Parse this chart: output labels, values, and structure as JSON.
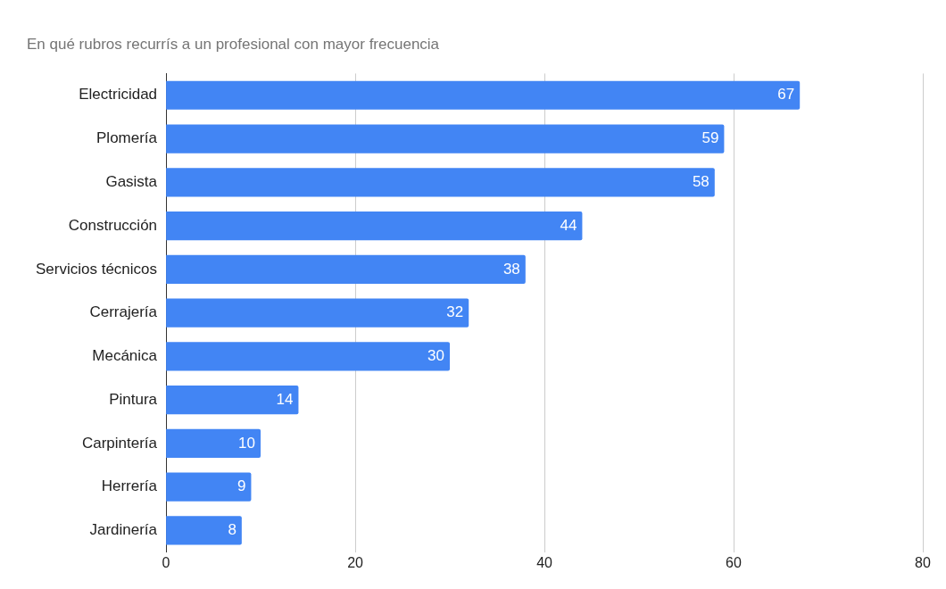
{
  "chart_data": {
    "type": "bar",
    "orientation": "horizontal",
    "title": "En qué rubros recurrís a un profesional con mayor frecuencia",
    "categories": [
      "Electricidad",
      "Plomería",
      "Gasista",
      "Construcción",
      "Servicios técnicos",
      "Cerrajería",
      "Mecánica",
      "Pintura",
      "Carpintería",
      "Herrería",
      "Jardinería"
    ],
    "values": [
      67,
      59,
      58,
      44,
      38,
      32,
      30,
      14,
      10,
      9,
      8
    ],
    "color": "#4285f4",
    "xlim": [
      0,
      80
    ],
    "xticks": [
      0,
      20,
      40,
      60,
      80
    ],
    "grid": "x",
    "legend": false,
    "data_labels": true
  }
}
